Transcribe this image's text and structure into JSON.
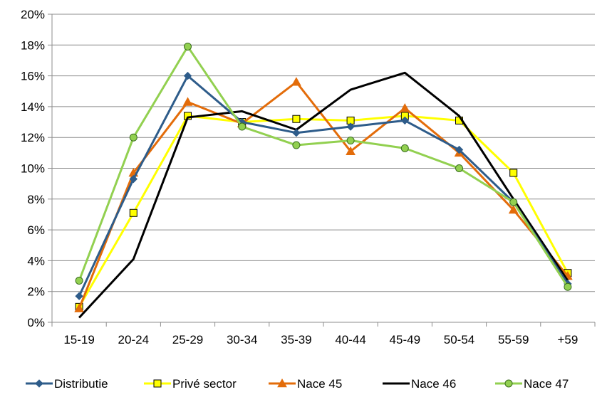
{
  "chart_data": {
    "type": "line",
    "title": "",
    "xlabel": "",
    "ylabel": "",
    "categories": [
      "15-19",
      "20-24",
      "25-29",
      "30-34",
      "35-39",
      "40-44",
      "45-49",
      "50-54",
      "55-59",
      "+59"
    ],
    "ylim": [
      0,
      20
    ],
    "yticks": [
      "0%",
      "2%",
      "4%",
      "6%",
      "8%",
      "10%",
      "12%",
      "14%",
      "16%",
      "18%",
      "20%"
    ],
    "grid": "horizontal",
    "legend_position": "bottom",
    "series": [
      {
        "name": "Distributie",
        "color": "#2e5c8a",
        "marker": "diamond",
        "values": [
          1.7,
          9.3,
          16.0,
          13.0,
          12.3,
          12.7,
          13.1,
          11.2,
          7.8,
          2.5
        ]
      },
      {
        "name": "Privé sector",
        "color": "#ffff00",
        "marker": "square",
        "values": [
          1.0,
          7.1,
          13.4,
          13.0,
          13.2,
          13.1,
          13.4,
          13.1,
          9.7,
          3.2
        ]
      },
      {
        "name": "Nace 45",
        "color": "#e36c0a",
        "marker": "triangle",
        "values": [
          0.9,
          9.7,
          14.3,
          12.9,
          15.6,
          11.1,
          13.9,
          11.0,
          7.3,
          3.0
        ]
      },
      {
        "name": "Nace 46",
        "color": "#000000",
        "marker": "none",
        "values": [
          0.3,
          4.1,
          13.3,
          13.7,
          12.5,
          15.1,
          16.2,
          13.4,
          8.0,
          2.7
        ]
      },
      {
        "name": "Nace 47",
        "color": "#92d050",
        "marker": "circle",
        "values": [
          2.7,
          12.0,
          17.9,
          12.7,
          11.5,
          11.8,
          11.3,
          10.0,
          7.8,
          2.3
        ]
      }
    ]
  }
}
